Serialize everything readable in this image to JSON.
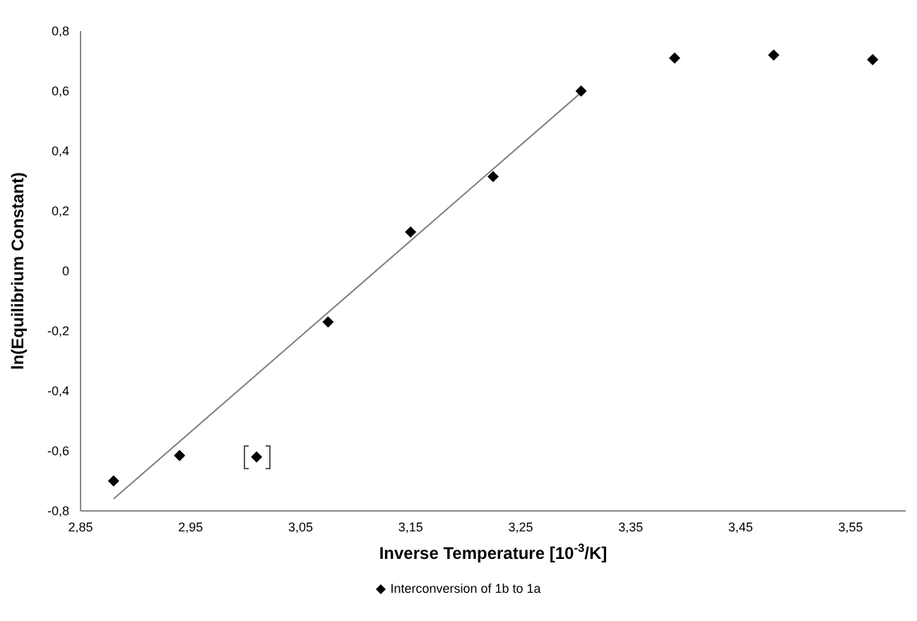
{
  "chart_data": {
    "type": "scatter",
    "xlabel": "Inverse Temperature [10$^{-3}$/K]",
    "ylabel": "ln(Equilibrium Constant)",
    "xlim": [
      2.85,
      3.6
    ],
    "xticks": [
      {
        "value": 2.85,
        "label": "2,85"
      },
      {
        "value": 2.95,
        "label": "2,95"
      },
      {
        "value": 3.05,
        "label": "3,05"
      },
      {
        "value": 3.15,
        "label": "3,15"
      },
      {
        "value": 3.25,
        "label": "3,25"
      },
      {
        "value": 3.35,
        "label": "3,35"
      },
      {
        "value": 3.45,
        "label": "3,45"
      },
      {
        "value": 3.55,
        "label": "3,55"
      }
    ],
    "ylim": [
      -0.8,
      0.8
    ],
    "yticks": [
      {
        "value": -0.8,
        "label": "-0,8"
      },
      {
        "value": -0.6,
        "label": "-0,6"
      },
      {
        "value": -0.4,
        "label": "-0,4"
      },
      {
        "value": -0.2,
        "label": "-0,2"
      },
      0,
      {
        "value": 0.2,
        "label": "0,2"
      },
      {
        "value": 0.4,
        "label": "0,4"
      },
      {
        "value": 0.6,
        "label": "0,6"
      },
      {
        "value": 0.8,
        "label": "0,8"
      }
    ],
    "grid": false,
    "legend": "bottom",
    "series": [
      {
        "name": "Interconversion of 1b to 1a",
        "marker": "diamond",
        "color": "#000000",
        "x": [
          2.88,
          2.94,
          3.01,
          3.075,
          3.15,
          3.225,
          3.305,
          3.39,
          3.48,
          3.57
        ],
        "values": [
          -0.7,
          -0.615,
          -0.62,
          -0.17,
          0.13,
          0.315,
          0.6,
          0.71,
          0.72,
          0.705
        ]
      },
      {
        "type": "line",
        "marker": "none",
        "color": "#808080",
        "x": [
          2.88,
          3.305
        ],
        "values": [
          -0.76,
          0.595
        ]
      }
    ]
  }
}
